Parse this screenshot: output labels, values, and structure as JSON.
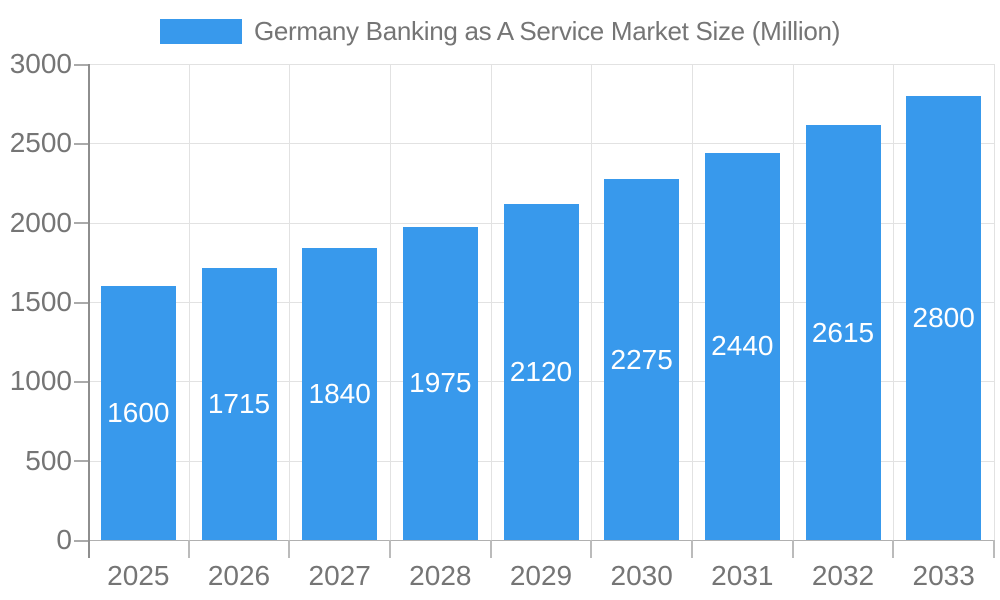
{
  "legend": {
    "swatch_color": "#3899ec"
  },
  "colors": {
    "bar": "#3899ec",
    "grid": "#e2e2e2",
    "zero_line": "#b0b0b0",
    "axis_line": "#8e8e8e",
    "tick": "#bbbbbb",
    "axis_text": "#757575",
    "bar_label": "#ffffff",
    "background": "#ffffff"
  },
  "chart_data": {
    "type": "bar",
    "title": "Germany Banking as A Service Market Size (Million)",
    "categories": [
      "2025",
      "2026",
      "2027",
      "2028",
      "2029",
      "2030",
      "2031",
      "2032",
      "2033"
    ],
    "values": [
      1600,
      1715,
      1840,
      1975,
      2120,
      2275,
      2440,
      2615,
      2800
    ],
    "xlabel": "",
    "ylabel": "",
    "ylim": [
      0,
      3000
    ],
    "yticks": [
      0,
      500,
      1000,
      1500,
      2000,
      2500,
      3000
    ],
    "grid": true,
    "legend_position": "top-center",
    "data_labels": "inside-center",
    "bar_color": "#3899ec",
    "data_label_color": "#ffffff",
    "axis_text_color": "#757575"
  }
}
